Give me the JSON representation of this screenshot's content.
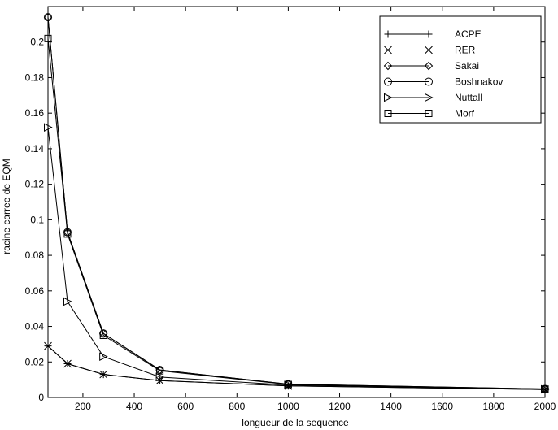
{
  "chart_data": {
    "type": "line",
    "xlabel": "longueur de la sequence",
    "ylabel": "racine carree de EQM",
    "xlim": [
      64,
      2000
    ],
    "ylim": [
      0,
      0.22
    ],
    "xticks": [
      200,
      400,
      600,
      800,
      1000,
      1200,
      1400,
      1600,
      1800,
      2000
    ],
    "yticks": [
      0,
      0.02,
      0.04,
      0.06,
      0.08,
      0.1,
      0.12,
      0.14,
      0.16,
      0.18,
      0.2
    ],
    "grid": false,
    "legend_position": "top-right",
    "x": [
      64,
      140,
      280,
      500,
      1000,
      2000
    ],
    "series": [
      {
        "name": "ACPE",
        "marker": "plus",
        "values": [
          0.029,
          0.019,
          0.013,
          0.0095,
          0.0065,
          0.0045
        ]
      },
      {
        "name": "RER",
        "marker": "x",
        "values": [
          0.029,
          0.019,
          0.013,
          0.0095,
          0.0065,
          0.0045
        ]
      },
      {
        "name": "Sakai",
        "marker": "diamond",
        "values": [
          0.214,
          0.093,
          0.036,
          0.0155,
          0.0075,
          0.0048
        ]
      },
      {
        "name": "Boshnakov",
        "marker": "circle",
        "values": [
          0.214,
          0.093,
          0.036,
          0.0155,
          0.0075,
          0.0048
        ]
      },
      {
        "name": "Nuttall",
        "marker": "triangle-right",
        "values": [
          0.152,
          0.054,
          0.023,
          0.0115,
          0.007,
          0.0046
        ]
      },
      {
        "name": "Morf",
        "marker": "square",
        "values": [
          0.202,
          0.092,
          0.035,
          0.015,
          0.0073,
          0.0047
        ]
      }
    ],
    "colors": {
      "line": "#000000",
      "background": "#ffffff"
    }
  }
}
